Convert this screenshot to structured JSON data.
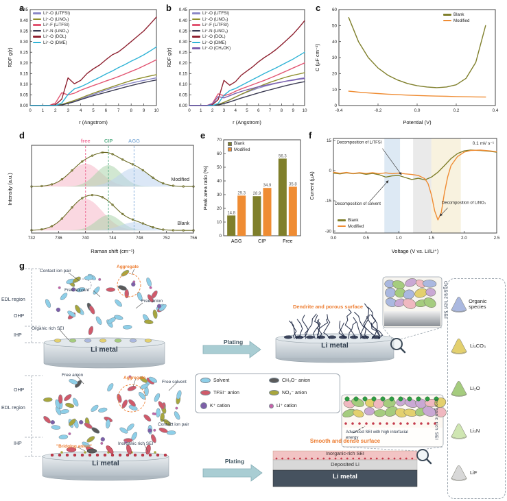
{
  "figure": {
    "panel_labels": [
      "a",
      "b",
      "c",
      "d",
      "e",
      "f",
      "g"
    ]
  },
  "chart_data": [
    {
      "id": "a",
      "type": "line",
      "xlabel": "r (Angstrom)",
      "ylabel": "RDF g(r)",
      "xlim": [
        0,
        10
      ],
      "ylim": [
        0,
        0.45
      ],
      "xticks": [
        0,
        1,
        2,
        3,
        4,
        5,
        6,
        7,
        8,
        9,
        10
      ],
      "yticks": [
        0,
        0.05,
        0.1,
        0.15,
        0.2,
        0.25,
        0.3,
        0.35,
        0.4,
        0.45
      ],
      "x": [
        0,
        0.5,
        1,
        1.5,
        2,
        2.5,
        3,
        3.5,
        4,
        4.5,
        5,
        5.5,
        6,
        6.5,
        7,
        7.5,
        8,
        8.5,
        9,
        9.5,
        10
      ],
      "series": [
        {
          "name": "Li⁺-O (LiTFSI)",
          "color": "#8a87c6",
          "values": [
            0,
            0,
            0,
            0,
            0,
            0.004,
            0.012,
            0.02,
            0.03,
            0.042,
            0.052,
            0.062,
            0.072,
            0.082,
            0.09,
            0.098,
            0.105,
            0.112,
            0.118,
            0.124,
            0.13
          ]
        },
        {
          "name": "Li⁺-O (LiNO₃)",
          "color": "#8f8f2d",
          "values": [
            0,
            0,
            0,
            0,
            0,
            0.005,
            0.014,
            0.024,
            0.035,
            0.047,
            0.058,
            0.068,
            0.078,
            0.088,
            0.098,
            0.108,
            0.117,
            0.125,
            0.132,
            0.139,
            0.145
          ]
        },
        {
          "name": "Li⁺-F (LiTFSI)",
          "color": "#e25572",
          "values": [
            0,
            0,
            0,
            0,
            0.012,
            0.06,
            0.05,
            0.058,
            0.072,
            0.083,
            0.094,
            0.104,
            0.115,
            0.125,
            0.136,
            0.148,
            0.16,
            0.172,
            0.186,
            0.2,
            0.215
          ]
        },
        {
          "name": "Li⁺-N (LiNO₃)",
          "color": "#3a3a52",
          "values": [
            0,
            0,
            0,
            0,
            0,
            0.003,
            0.01,
            0.018,
            0.028,
            0.037,
            0.046,
            0.054,
            0.062,
            0.07,
            0.078,
            0.086,
            0.094,
            0.101,
            0.108,
            0.114,
            0.12
          ]
        },
        {
          "name": "Li⁺-O (DOL)",
          "color": "#8e2130",
          "values": [
            0,
            0,
            0,
            0,
            0.004,
            0.03,
            0.13,
            0.102,
            0.118,
            0.15,
            0.172,
            0.19,
            0.215,
            0.238,
            0.252,
            0.275,
            0.3,
            0.325,
            0.35,
            0.382,
            0.415
          ]
        },
        {
          "name": "Li⁺-O (DME)",
          "color": "#2fb3d6",
          "values": [
            0,
            0,
            0,
            0,
            0,
            0.012,
            0.052,
            0.078,
            0.088,
            0.102,
            0.118,
            0.132,
            0.148,
            0.162,
            0.178,
            0.192,
            0.208,
            0.222,
            0.238,
            0.256,
            0.275
          ]
        }
      ]
    },
    {
      "id": "b",
      "type": "line",
      "xlabel": "r (Angstrom)",
      "ylabel": "RDF g(r)",
      "xlim": [
        0,
        10
      ],
      "ylim": [
        0,
        0.45
      ],
      "xticks": [
        0,
        1,
        2,
        3,
        4,
        5,
        6,
        7,
        8,
        9,
        10
      ],
      "yticks": [
        0,
        0.05,
        0.1,
        0.15,
        0.2,
        0.25,
        0.3,
        0.35,
        0.4,
        0.45
      ],
      "x": [
        0,
        0.5,
        1,
        1.5,
        2,
        2.5,
        3,
        3.5,
        4,
        4.5,
        5,
        5.5,
        6,
        6.5,
        7,
        7.5,
        8,
        8.5,
        9,
        9.5,
        10
      ],
      "series": [
        {
          "name": "Li⁺-O (LiTFSI)",
          "color": "#8a87c6",
          "values": [
            0,
            0,
            0,
            0,
            0,
            0.004,
            0.014,
            0.026,
            0.04,
            0.052,
            0.063,
            0.073,
            0.082,
            0.09,
            0.097,
            0.104,
            0.11,
            0.116,
            0.121,
            0.126,
            0.13
          ]
        },
        {
          "name": "Li⁺-O (LiNO₃)",
          "color": "#8f8f2d",
          "values": [
            0,
            0,
            0,
            0,
            0,
            0.005,
            0.015,
            0.027,
            0.04,
            0.053,
            0.065,
            0.077,
            0.088,
            0.099,
            0.109,
            0.118,
            0.127,
            0.135,
            0.142,
            0.148,
            0.154
          ]
        },
        {
          "name": "Li⁺-F (LiTFSI)",
          "color": "#e25572",
          "values": [
            0,
            0,
            0,
            0,
            0.01,
            0.055,
            0.046,
            0.054,
            0.067,
            0.078,
            0.088,
            0.098,
            0.108,
            0.118,
            0.129,
            0.14,
            0.152,
            0.164,
            0.176,
            0.188,
            0.2
          ]
        },
        {
          "name": "Li⁺-N (LiNO₃)",
          "color": "#3a3a52",
          "values": [
            0,
            0,
            0,
            0,
            0,
            0.003,
            0.009,
            0.017,
            0.026,
            0.035,
            0.043,
            0.051,
            0.059,
            0.067,
            0.074,
            0.081,
            0.088,
            0.095,
            0.101,
            0.107,
            0.112
          ]
        },
        {
          "name": "Li⁺-O (DOL)",
          "color": "#8e2130",
          "values": [
            0,
            0,
            0,
            0,
            0.004,
            0.028,
            0.118,
            0.095,
            0.112,
            0.142,
            0.162,
            0.182,
            0.205,
            0.225,
            0.242,
            0.262,
            0.285,
            0.31,
            0.335,
            0.365,
            0.398
          ]
        },
        {
          "name": "Li⁺-O (DME)",
          "color": "#2fb3d6",
          "values": [
            0,
            0,
            0,
            0,
            0,
            0.01,
            0.048,
            0.07,
            0.08,
            0.094,
            0.108,
            0.122,
            0.136,
            0.15,
            0.163,
            0.176,
            0.19,
            0.204,
            0.218,
            0.234,
            0.25
          ]
        },
        {
          "name": "Li⁺-O (CH₃OK)",
          "color": "#7b5fae",
          "values": [
            0,
            0,
            0,
            0,
            0.008,
            0.042,
            0.036,
            0.046,
            0.057,
            0.066,
            0.074,
            0.081,
            0.088,
            0.094,
            0.1,
            0.105,
            0.11,
            0.115,
            0.119,
            0.123,
            0.127
          ]
        }
      ]
    },
    {
      "id": "c",
      "type": "line",
      "xlabel": "Potential (V)",
      "ylabel": "C (µF cm⁻²)",
      "xlim": [
        -0.4,
        0.4
      ],
      "ylim": [
        0,
        60
      ],
      "xticks": [
        -0.4,
        -0.2,
        0,
        0.2,
        0.4
      ],
      "yticks": [
        0,
        10,
        20,
        30,
        40,
        50,
        60
      ],
      "x": [
        -0.35,
        -0.3,
        -0.25,
        -0.2,
        -0.15,
        -0.1,
        -0.05,
        0,
        0.05,
        0.1,
        0.15,
        0.2,
        0.25,
        0.3,
        0.35
      ],
      "series": [
        {
          "name": "Blank",
          "color": "#7f7f2b",
          "values": [
            55,
            40,
            30,
            23.5,
            19,
            16,
            13.8,
            12.4,
            11.6,
            11.2,
            11.6,
            13,
            17,
            27,
            50
          ]
        },
        {
          "name": "Modified",
          "color": "#ef8c33",
          "values": [
            9,
            8.4,
            7.9,
            7.5,
            7.1,
            6.8,
            6.5,
            6.3,
            6.1,
            5.9,
            5.8,
            5.6,
            5.5,
            5.4,
            5.3
          ]
        }
      ]
    },
    {
      "id": "d",
      "type": "line",
      "subtype": "raman-spectra",
      "xlabel": "Raman shift (cm⁻¹)",
      "ylabel": "Intensity (a.u.)",
      "xlim": [
        732,
        756
      ],
      "xticks": [
        732,
        736,
        740,
        744,
        748,
        752,
        756
      ],
      "annotations": [
        {
          "label": "free",
          "x": 740,
          "color": "#f0719a"
        },
        {
          "label": "CIP",
          "x": 743.4,
          "color": "#63b58f"
        },
        {
          "label": "AGG",
          "x": 747.2,
          "color": "#8fb6dd"
        }
      ],
      "spectra": [
        {
          "name": "Modified",
          "peaks": [
            {
              "center": 740,
              "sigma": 2.3,
              "amp": 0.62,
              "color": "#f6b8c8"
            },
            {
              "center": 743.4,
              "sigma": 1.9,
              "amp": 0.58,
              "color": "#abd3ab"
            },
            {
              "center": 747.2,
              "sigma": 2.3,
              "amp": 0.5,
              "color": "#bdd4ee"
            }
          ]
        },
        {
          "name": "Blank",
          "peaks": [
            {
              "center": 740,
              "sigma": 2.5,
              "amp": 0.85,
              "color": "#f6b8c8"
            },
            {
              "center": 743.4,
              "sigma": 1.8,
              "amp": 0.42,
              "color": "#abd3ab"
            },
            {
              "center": 747.2,
              "sigma": 2.0,
              "amp": 0.22,
              "color": "#bdd4ee"
            }
          ]
        }
      ]
    },
    {
      "id": "e",
      "type": "bar",
      "ylabel": "Peak area ratio (%)",
      "categories": [
        "AGG",
        "CIP",
        "Free"
      ],
      "ylim": [
        0,
        70
      ],
      "yticks": [
        0,
        10,
        20,
        30,
        40,
        50,
        60,
        70
      ],
      "series": [
        {
          "name": "Blank",
          "color": "#7f7f2b",
          "values": [
            14.8,
            28.9,
            56.3
          ]
        },
        {
          "name": "Modified",
          "color": "#ef8c33",
          "values": [
            29.3,
            34.9,
            35.8
          ]
        }
      ]
    },
    {
      "id": "f",
      "type": "line",
      "xlabel": "Voltage (V vs. Li/Li⁺)",
      "ylabel": "Current (µA)",
      "xlim": [
        0,
        2.5
      ],
      "ylim": [
        -31,
        16
      ],
      "xticks": [
        0,
        0.5,
        1,
        1.5,
        2,
        2.5
      ],
      "yticks": [
        -30,
        -15,
        0,
        15
      ],
      "note": "0.1 mV s⁻¹",
      "bands": [
        {
          "x1": 0.78,
          "x2": 1.02,
          "color": "#cfe0ef",
          "opacity": 0.7
        },
        {
          "x1": 1.22,
          "x2": 1.5,
          "color": "#dedede",
          "opacity": 0.65
        },
        {
          "x1": 1.5,
          "x2": 1.95,
          "color": "#f3e9c9",
          "opacity": 0.6
        }
      ],
      "annotations": [
        {
          "text": "Decomposition of LiTFSI",
          "tx": 0.05,
          "ty": 13.5,
          "lx": 0.75,
          "ly": 11,
          "ax": 1.04,
          "ay": -2
        },
        {
          "text": "Decomposition of solvent",
          "tx": 0.02,
          "ty": -17,
          "lx": 0.55,
          "ly": -15.5,
          "ax": 0.84,
          "ay": -5
        },
        {
          "text": "Decomposition of LiNO₃",
          "tx": 1.66,
          "ty": -16.5,
          "lx": 1.75,
          "ly": -18.5,
          "ax": 1.63,
          "ay": -22.5
        }
      ],
      "series": [
        {
          "name": "Blank",
          "color": "#7f7f2b",
          "x": [
            0,
            0.1,
            0.2,
            0.3,
            0.4,
            0.5,
            0.6,
            0.7,
            0.8,
            0.9,
            1,
            1.1,
            1.2,
            1.3,
            1.4,
            1.5,
            1.6,
            1.7,
            1.8,
            1.9,
            2,
            2.1,
            2.25,
            2.4,
            2.5
          ],
          "values": [
            -1.2,
            -1.6,
            -1.1,
            -1.5,
            -1.2,
            -1.8,
            -1.4,
            -2,
            -3.2,
            -2.6,
            -2.4,
            -3.4,
            -4.4,
            -3.8,
            -4.6,
            -3.2,
            -0.8,
            2.5,
            6,
            8.5,
            9.8,
            10.2,
            10,
            9.6,
            9.2
          ]
        },
        {
          "name": "Modified",
          "color": "#ef8c33",
          "x": [
            0,
            0.1,
            0.2,
            0.3,
            0.4,
            0.5,
            0.6,
            0.7,
            0.8,
            0.9,
            1,
            1.1,
            1.2,
            1.3,
            1.4,
            1.45,
            1.5,
            1.55,
            1.6,
            1.65,
            1.7,
            1.75,
            1.8,
            1.9,
            2,
            2.1,
            2.25,
            2.4,
            2.5
          ],
          "values": [
            -0.8,
            -1.3,
            -0.9,
            -1.4,
            -1,
            -1.4,
            -1,
            -1.5,
            -1.1,
            -1.5,
            -1.2,
            -1.6,
            -1.9,
            -2.4,
            -4,
            -6.5,
            -12,
            -20,
            -24.5,
            -21,
            -11,
            -3,
            2.5,
            7,
            9.2,
            10,
            10.2,
            9.8,
            9.4
          ]
        }
      ]
    }
  ],
  "g": {
    "colors": {
      "solvent": "#8ecfe8",
      "tfsi": "#d05a6a",
      "no3": "#a8a63e",
      "ch3o": "#5a5a5a",
      "k": "#7d5fa8",
      "li": "#c960a8",
      "orange": "#ed7d31",
      "dark": "#2e3b4e",
      "arrow": "#a9cdd3"
    },
    "edl_region": "EDL region",
    "ohp": "OHP",
    "ihp": "IHP",
    "li_metal": "Li metal",
    "plating": "Plating",
    "contact_ion_pair": "Contact ion pair",
    "free_solvent": "Free solvent",
    "aggregate": "Aggregate",
    "free_anion": "Free anion",
    "organic_rich_sei": "Organic rich SEI",
    "inorganic_rich_sei": "Inorganic rich SEI",
    "bridging_anion": "\"Bridging anion\"",
    "dendrite_label": "Dendrite and porous surface",
    "smooth_label": "Smooth and dense surface",
    "inorganic_sei_layer": "Inorganic-rich SEI",
    "deposited_li": "Deposited Li",
    "advanced_sei": "Advanced SEI with high interfacial energy",
    "legend": {
      "items": [
        {
          "label": "Solvent",
          "shape": "ellipse",
          "color": "#8ecfe8",
          "icon": "solvent-icon"
        },
        {
          "label": "CH₃O⁻ anion",
          "shape": "ellipse",
          "color": "#5a5a5a",
          "icon": "ch3o-anion-icon"
        },
        {
          "label": "TFSI⁻ anion",
          "shape": "ellipse",
          "color": "#d05a6a",
          "icon": "tfsi-anion-icon"
        },
        {
          "label": "NO₃⁻ anion",
          "shape": "ellipse",
          "color": "#a8a63e",
          "icon": "no3-anion-icon"
        },
        {
          "label": "K⁺ cation",
          "shape": "circle",
          "color": "#7d5fa8",
          "icon": "k-cation-icon"
        },
        {
          "label": "Li⁺ cation",
          "shape": "dot",
          "color": "#c960a8",
          "icon": "li-cation-icon"
        }
      ]
    },
    "species": {
      "items": [
        {
          "label": "Organic species",
          "color": "#aab8e0"
        },
        {
          "label": "Li₂CO₃",
          "color": "#e3d06e"
        },
        {
          "label": "Li₂O",
          "color": "#a5cc7e"
        },
        {
          "label": "Li₃N",
          "color": "#cfe6b2"
        },
        {
          "label": "LiF",
          "color": "#d8d8d8"
        }
      ]
    }
  }
}
